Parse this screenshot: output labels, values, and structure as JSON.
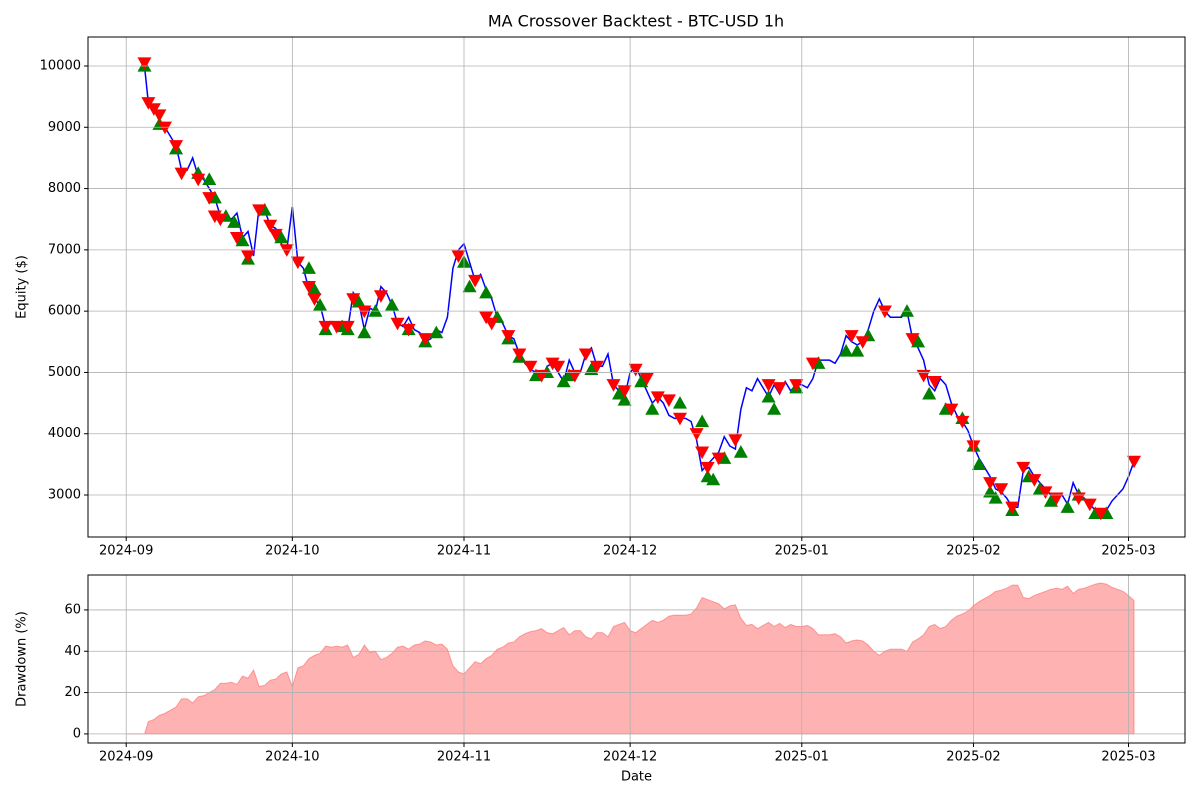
{
  "chart_data": [
    {
      "type": "line",
      "title": "MA Crossover Backtest - BTC-USD 1h",
      "ylabel": "Equity ($)",
      "grid": true,
      "xlim": [
        -6.9,
        191.2
      ],
      "ylim": [
        2315,
        10473
      ],
      "xticks": [
        {
          "value": 0,
          "label": "2024-09"
        },
        {
          "value": 30,
          "label": "2024-10"
        },
        {
          "value": 61,
          "label": "2024-11"
        },
        {
          "value": 91,
          "label": "2024-12"
        },
        {
          "value": 122,
          "label": "2025-01"
        },
        {
          "value": 153,
          "label": "2025-02"
        },
        {
          "value": 181,
          "label": "2025-03"
        }
      ],
      "yticks": [
        3000,
        4000,
        5000,
        6000,
        7000,
        8000,
        9000,
        10000
      ],
      "series": [
        {
          "color": "#0000ff",
          "x": [
            3.3,
            4,
            5,
            6,
            7,
            8,
            9,
            10,
            11,
            12,
            13,
            14,
            15,
            16,
            17,
            18,
            19,
            20,
            21,
            22,
            23,
            24,
            25,
            26,
            27,
            28,
            29,
            30,
            31,
            32,
            33,
            34,
            35,
            36,
            37,
            38,
            39,
            40,
            41,
            42,
            43,
            44,
            45,
            46,
            47,
            48,
            49,
            50,
            51,
            52,
            53,
            54,
            55,
            56,
            57,
            58,
            59,
            60,
            61,
            62,
            63,
            64,
            65,
            66,
            67,
            68,
            69,
            70,
            71,
            72,
            73,
            74,
            75,
            76,
            77,
            78,
            79,
            80,
            81,
            82,
            83,
            84,
            85,
            86,
            87,
            88,
            89,
            90,
            91,
            92,
            93,
            94,
            95,
            96,
            97,
            98,
            99,
            100,
            101,
            102,
            103,
            104,
            105,
            106,
            107,
            108,
            109,
            110,
            111,
            112,
            113,
            114,
            115,
            116,
            117,
            118,
            119,
            120,
            121,
            122,
            123,
            124,
            125,
            126,
            127,
            128,
            129,
            130,
            131,
            132,
            133,
            134,
            135,
            136,
            137,
            138,
            139,
            140,
            141,
            142,
            143,
            144,
            145,
            146,
            147,
            148,
            149,
            150,
            151,
            152,
            153,
            154,
            155,
            156,
            157,
            158,
            159,
            160,
            161,
            162,
            163,
            164,
            165,
            166,
            167,
            168,
            169,
            170,
            171,
            172,
            173,
            174,
            175,
            176,
            177,
            178,
            179,
            180,
            181,
            182
          ],
          "values": [
            10000,
            9400,
            9300,
            9100,
            9000,
            8850,
            8700,
            8300,
            8300,
            8500,
            8200,
            8150,
            8000,
            7850,
            7550,
            7550,
            7500,
            7600,
            7200,
            7300,
            6900,
            7700,
            7650,
            7400,
            7350,
            7100,
            7000,
            7700,
            6800,
            6700,
            6350,
            6200,
            6100,
            5750,
            5800,
            5750,
            5800,
            5700,
            6300,
            6150,
            5700,
            6050,
            6000,
            6400,
            6300,
            6100,
            5800,
            5750,
            5900,
            5700,
            5650,
            5500,
            5550,
            5700,
            5650,
            5900,
            6700,
            7000,
            7100,
            6800,
            6500,
            6600,
            6350,
            6200,
            5900,
            5800,
            5600,
            5550,
            5300,
            5150,
            5050,
            5000,
            4900,
            5100,
            5150,
            5000,
            4850,
            5200,
            5000,
            5000,
            5300,
            5400,
            5100,
            5100,
            5300,
            4800,
            4700,
            4600,
            5000,
            5100,
            4900,
            4700,
            4500,
            4600,
            4500,
            4300,
            4250,
            4250,
            4250,
            4200,
            3900,
            3400,
            3500,
            3600,
            3700,
            3950,
            3800,
            3750,
            4400,
            4750,
            4700,
            4900,
            4750,
            4600,
            4800,
            4650,
            4850,
            4700,
            4800,
            4800,
            4750,
            4900,
            5200,
            5200,
            5200,
            5150,
            5300,
            5600,
            5500,
            5450,
            5500,
            5700,
            6000,
            6200,
            6000,
            5900,
            5900,
            5900,
            6000,
            5550,
            5400,
            5200,
            4800,
            4700,
            4900,
            4800,
            4500,
            4300,
            4200,
            4050,
            3800,
            3600,
            3450,
            3300,
            3100,
            3050,
            2950,
            2800,
            2800,
            3400,
            3450,
            3300,
            3200,
            3100,
            3000,
            2950,
            3000,
            2850,
            3200,
            3000,
            2950,
            2850,
            2750,
            2700,
            2750,
            2900,
            3000,
            3100,
            3300,
            3550
          ]
        },
        {
          "color": "#008000",
          "marker": "^",
          "x": [
            3.3,
            6,
            9,
            13,
            15,
            16,
            18,
            19.5,
            21,
            22,
            25,
            28,
            33,
            34,
            35,
            36,
            39,
            40,
            42,
            43,
            45,
            48,
            51,
            54,
            56,
            61,
            62,
            65,
            67,
            69,
            71,
            74,
            76,
            79,
            80,
            84,
            89,
            90,
            93,
            95,
            100,
            104,
            105,
            106,
            108,
            111,
            116,
            117,
            121,
            125,
            130,
            132,
            134,
            141,
            143,
            145,
            148,
            151,
            153,
            154,
            156,
            157,
            160,
            163,
            165,
            167,
            170,
            172,
            175,
            177
          ],
          "values": [
            10000,
            9050,
            8650,
            8250,
            8150,
            7850,
            7550,
            7450,
            7150,
            6850,
            7650,
            7200,
            6700,
            6350,
            6100,
            5700,
            5750,
            5700,
            6150,
            5650,
            6000,
            6100,
            5700,
            5500,
            5650,
            6800,
            6400,
            6300,
            5900,
            5550,
            5250,
            4950,
            5000,
            4850,
            4950,
            5050,
            4650,
            4550,
            4850,
            4400,
            4500,
            4200,
            3300,
            3250,
            3600,
            3700,
            4600,
            4400,
            4750,
            5150,
            5350,
            5350,
            5600,
            6000,
            5500,
            4650,
            4400,
            4250,
            3800,
            3500,
            3050,
            2950,
            2750,
            3300,
            3100,
            2900,
            2800,
            3000,
            2700,
            2700
          ]
        },
        {
          "color": "#ff0000",
          "marker": "v",
          "x": [
            3.3,
            4,
            5,
            6,
            7,
            9,
            10,
            13,
            15,
            16,
            17,
            20,
            22,
            24,
            26,
            27,
            29,
            31,
            33,
            34,
            36,
            38,
            40,
            41,
            43,
            46,
            49,
            51,
            54,
            60,
            63,
            65,
            66,
            69,
            71,
            73,
            75,
            77,
            78,
            81,
            83,
            85,
            88,
            90,
            92,
            94,
            96,
            98,
            100,
            103,
            104,
            105,
            107,
            110,
            116,
            118,
            121,
            124,
            131,
            133,
            137,
            142,
            144,
            146,
            149,
            151,
            153,
            156,
            158,
            160,
            162,
            164,
            166,
            168,
            172,
            174,
            176,
            182
          ],
          "values": [
            10050,
            9400,
            9300,
            9200,
            9000,
            8700,
            8250,
            8150,
            7850,
            7550,
            7500,
            7200,
            6900,
            7650,
            7400,
            7250,
            7000,
            6800,
            6400,
            6200,
            5750,
            5750,
            5750,
            6200,
            6000,
            6250,
            5800,
            5700,
            5550,
            6900,
            6500,
            5900,
            5800,
            5600,
            5300,
            5100,
            4950,
            5150,
            5100,
            4950,
            5300,
            5100,
            4800,
            4700,
            5050,
            4900,
            4600,
            4550,
            4250,
            4000,
            3700,
            3450,
            3600,
            3900,
            4800,
            4750,
            4800,
            5150,
            5600,
            5500,
            6000,
            5550,
            4950,
            4850,
            4400,
            4200,
            3800,
            3200,
            3100,
            2800,
            3450,
            3250,
            3050,
            2950,
            2950,
            2850,
            2700,
            3550
          ]
        }
      ]
    },
    {
      "type": "area",
      "xlabel": "Date",
      "ylabel": "Drawdown (%)",
      "grid": true,
      "xlim": [
        -6.9,
        191.2
      ],
      "ylim": [
        -4.4,
        76.9
      ],
      "xticks": [
        {
          "value": 0,
          "label": "2024-09"
        },
        {
          "value": 30,
          "label": "2024-10"
        },
        {
          "value": 61,
          "label": "2024-11"
        },
        {
          "value": 91,
          "label": "2024-12"
        },
        {
          "value": 122,
          "label": "2025-01"
        },
        {
          "value": 153,
          "label": "2025-02"
        },
        {
          "value": 181,
          "label": "2025-03"
        }
      ],
      "yticks": [
        0,
        20,
        40,
        60
      ],
      "series": [
        {
          "color": "#ff0000",
          "alpha": 0.3,
          "x": [
            0,
            3.3,
            4,
            5,
            6,
            7,
            8,
            9,
            10,
            11,
            12,
            13,
            14,
            15,
            16,
            17,
            18,
            19,
            20,
            21,
            22,
            23,
            24,
            25,
            26,
            27,
            28,
            29,
            30,
            31,
            32,
            33,
            34,
            35,
            36,
            37,
            38,
            39,
            40,
            41,
            42,
            43,
            44,
            45,
            46,
            47,
            48,
            49,
            50,
            51,
            52,
            53,
            54,
            55,
            56,
            57,
            58,
            59,
            60,
            61,
            62,
            63,
            64,
            65,
            66,
            67,
            68,
            69,
            70,
            71,
            72,
            73,
            74,
            75,
            76,
            77,
            78,
            79,
            80,
            81,
            82,
            83,
            84,
            85,
            86,
            87,
            88,
            89,
            90,
            91,
            92,
            93,
            94,
            95,
            96,
            97,
            98,
            99,
            100,
            101,
            102,
            103,
            104,
            105,
            106,
            107,
            108,
            109,
            110,
            111,
            112,
            113,
            114,
            115,
            116,
            117,
            118,
            119,
            120,
            121,
            122,
            123,
            124,
            125,
            126,
            127,
            128,
            129,
            130,
            131,
            132,
            133,
            134,
            135,
            136,
            137,
            138,
            139,
            140,
            141,
            142,
            143,
            144,
            145,
            146,
            147,
            148,
            149,
            150,
            151,
            152,
            153,
            154,
            155,
            156,
            157,
            158,
            159,
            160,
            161,
            162,
            163,
            164,
            165,
            166,
            167,
            168,
            169,
            170,
            171,
            172,
            173,
            174,
            175,
            176,
            177,
            178,
            179,
            180,
            181,
            182
          ],
          "values": [
            0,
            0,
            6,
            7,
            9,
            10,
            11.5,
            13,
            17,
            17,
            15,
            18,
            18.5,
            20,
            21.5,
            24.5,
            24.5,
            25,
            24,
            28,
            27,
            31,
            23,
            23.5,
            26,
            26.5,
            29,
            30,
            23,
            32,
            33,
            36.5,
            38,
            39,
            42.5,
            42,
            42.5,
            42,
            43,
            37,
            38.5,
            43,
            39.5,
            40,
            36,
            37,
            39,
            42,
            42.5,
            41,
            43,
            43.5,
            45,
            44.5,
            43,
            43.5,
            41,
            33,
            30,
            29,
            32,
            35,
            34,
            36.5,
            38,
            41,
            42,
            44,
            44.5,
            47,
            48.5,
            49.5,
            50,
            51,
            49,
            48.5,
            50,
            51.5,
            48,
            50,
            50,
            47,
            46,
            49,
            49,
            47,
            52,
            53,
            54,
            50,
            49,
            51,
            53,
            55,
            54,
            55,
            57,
            57.5,
            57.5,
            57.5,
            58,
            61,
            66,
            65,
            64,
            63,
            60.5,
            62,
            62.5,
            56,
            52.5,
            53,
            51,
            52.5,
            54,
            52,
            53.5,
            51.5,
            53,
            52,
            52,
            52.5,
            51,
            48,
            48,
            48,
            48.5,
            47,
            44,
            45,
            45.5,
            45,
            43,
            40,
            38,
            40,
            41,
            41,
            41,
            40,
            44.5,
            46,
            48,
            52,
            53,
            51,
            52,
            55,
            57,
            58,
            59.5,
            62,
            64,
            65.5,
            67,
            69,
            69.5,
            70.5,
            72,
            72,
            66,
            65.5,
            67,
            68,
            69,
            70,
            70.5,
            70,
            71.5,
            68,
            70,
            70.5,
            71.5,
            72.5,
            73,
            72.5,
            71,
            70,
            69,
            67,
            64.5
          ]
        }
      ]
    }
  ]
}
